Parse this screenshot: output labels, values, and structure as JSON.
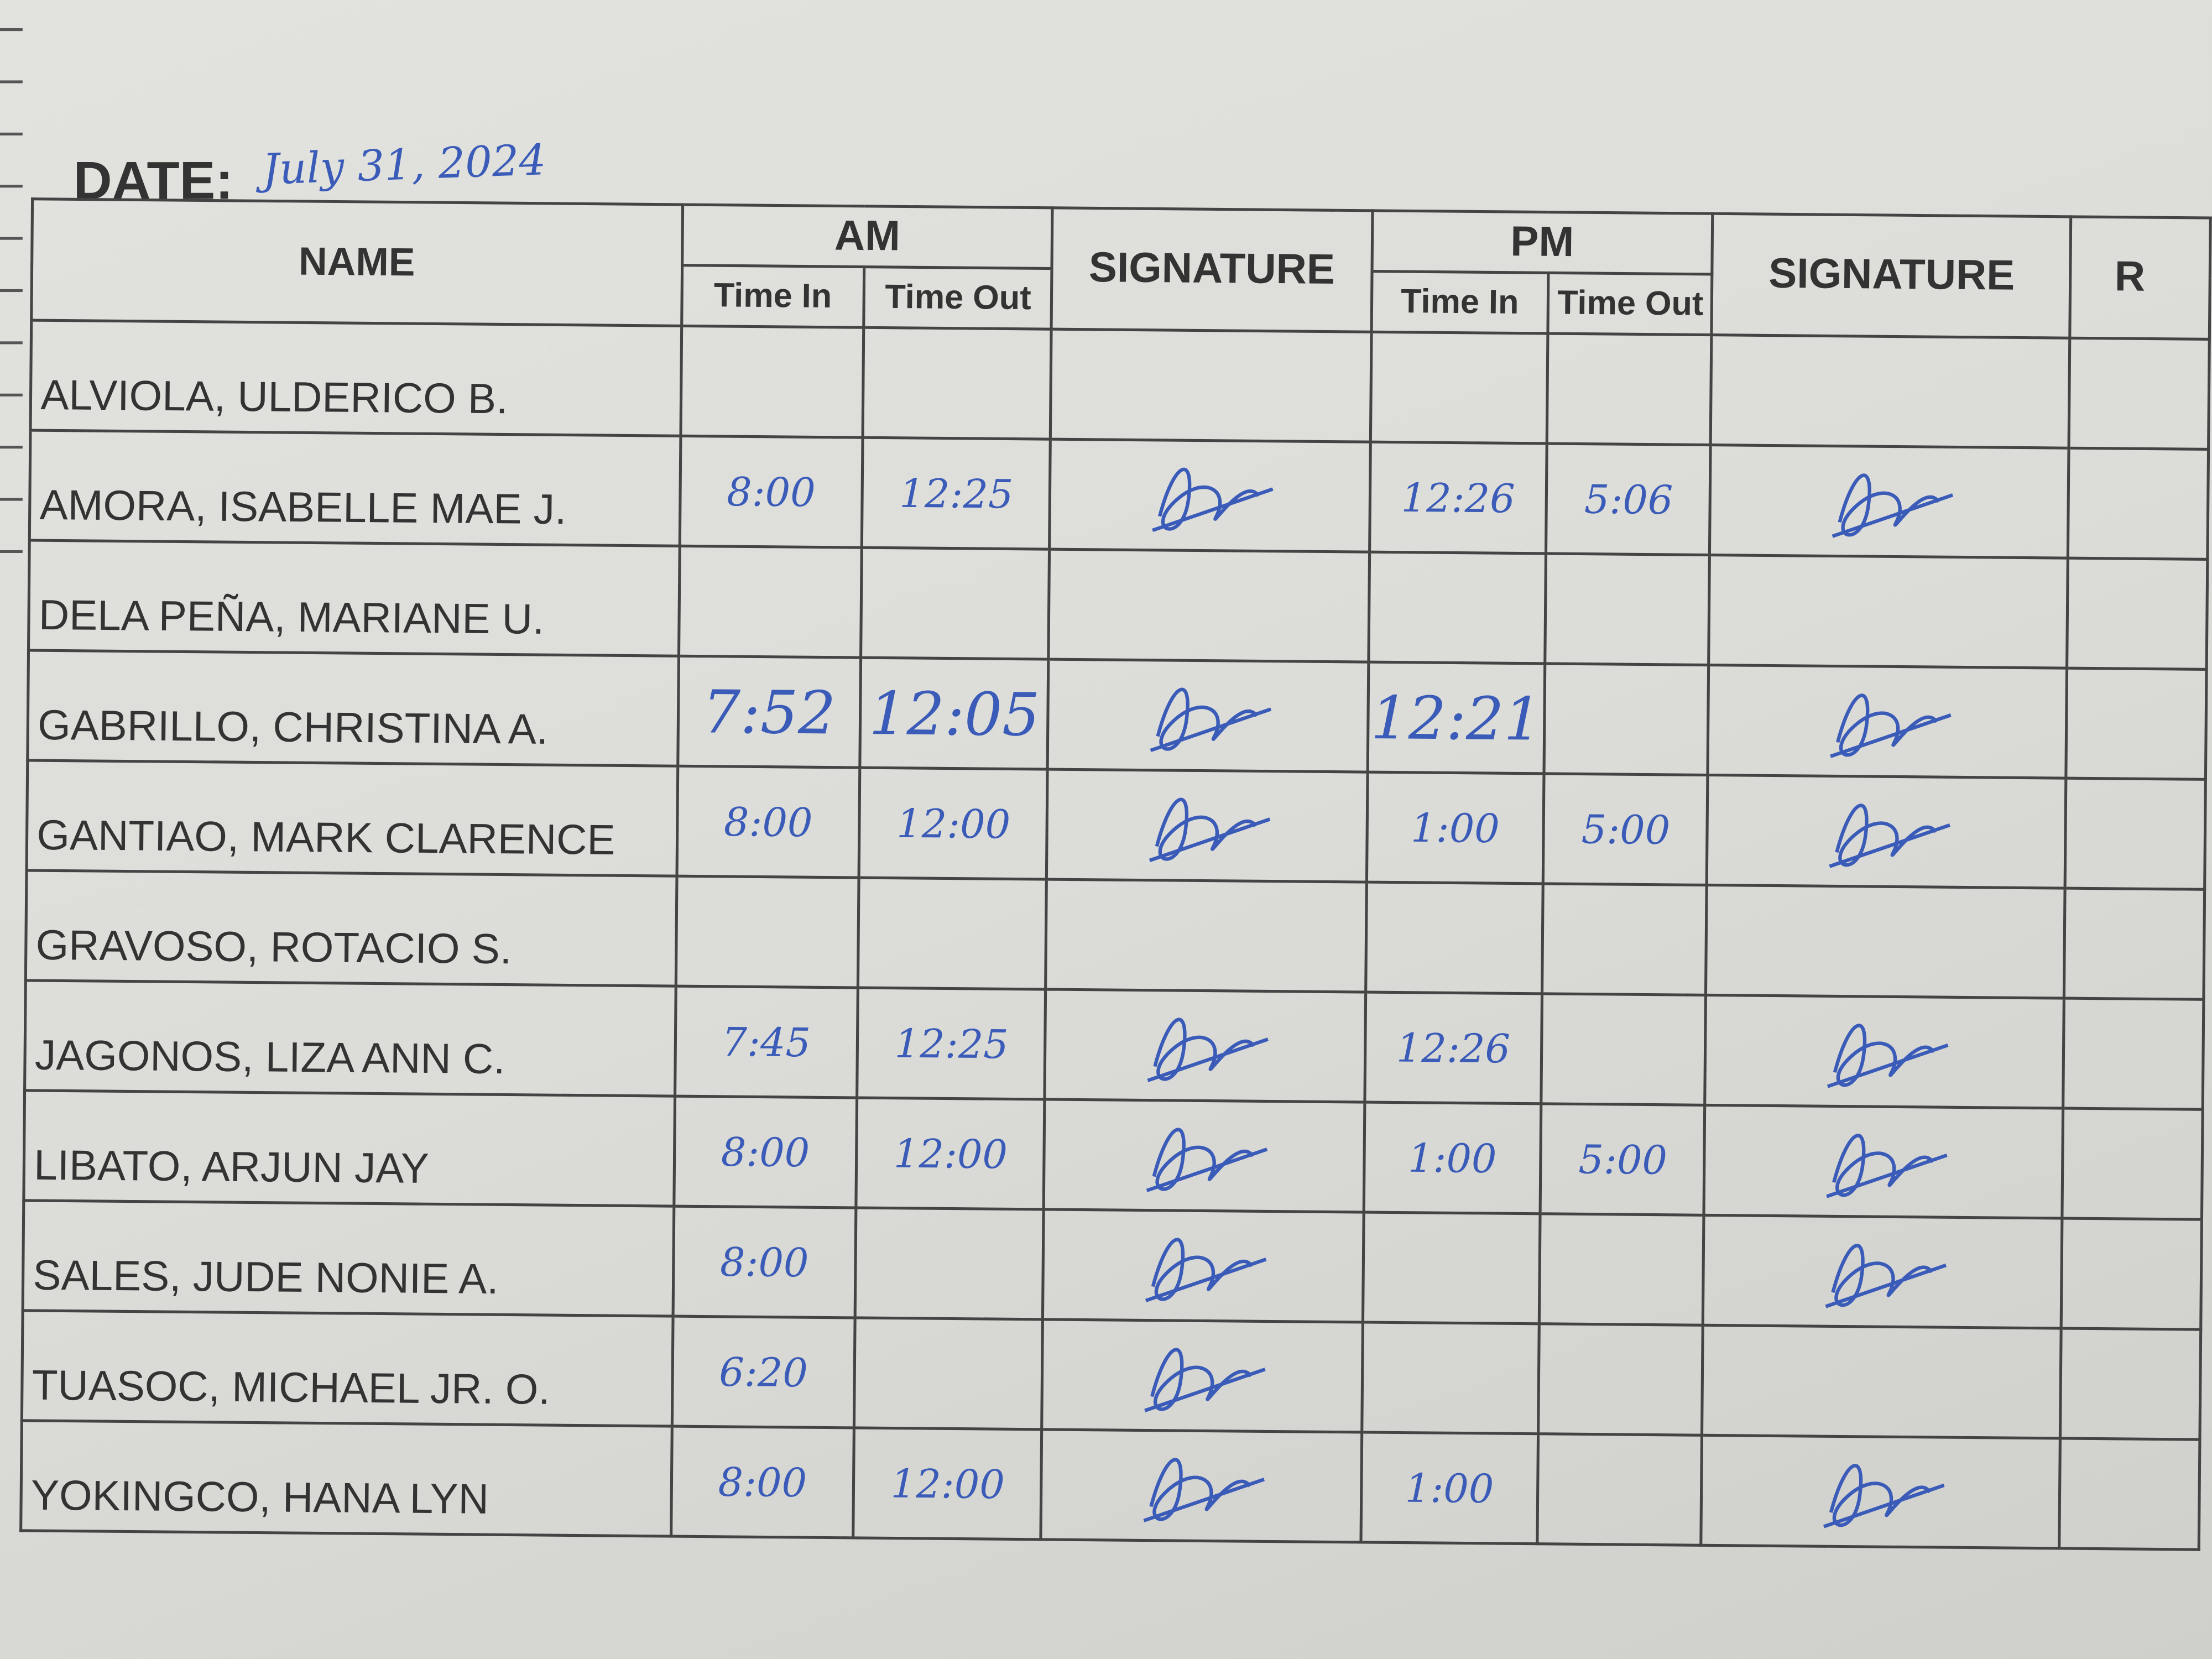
{
  "header": {
    "date_label": "DATE:",
    "date_value": "July 31, 2024"
  },
  "columns": {
    "name": "NAME",
    "am": "AM",
    "pm": "PM",
    "time_in": "Time In",
    "time_out": "Time Out",
    "signature": "SIGNATURE",
    "remarks_partial": "R"
  },
  "ink_color": "#3a5bb8",
  "rows": [
    {
      "name": "ALVIOLA, ULDERICO B.",
      "am_in": "",
      "am_out": "",
      "am_signed": false,
      "pm_in": "",
      "pm_out": "",
      "pm_signed": false
    },
    {
      "name": "AMORA, ISABELLE MAE J.",
      "am_in": "8:00",
      "am_out": "12:25",
      "am_signed": true,
      "pm_in": "12:26",
      "pm_out": "5:06",
      "pm_signed": true
    },
    {
      "name": "DELA PEÑA, MARIANE U.",
      "am_in": "",
      "am_out": "",
      "am_signed": false,
      "pm_in": "",
      "pm_out": "",
      "pm_signed": false
    },
    {
      "name": "GABRILLO, CHRISTINA A.",
      "am_in": "7:52",
      "am_out": "12:05",
      "am_signed": true,
      "pm_in": "12:21",
      "pm_out": "",
      "pm_signed": true
    },
    {
      "name": "GANTIAO, MARK CLARENCE",
      "am_in": "8:00",
      "am_out": "12:00",
      "am_signed": true,
      "pm_in": "1:00",
      "pm_out": "5:00",
      "pm_signed": true
    },
    {
      "name": "GRAVOSO, ROTACIO S.",
      "am_in": "",
      "am_out": "",
      "am_signed": false,
      "pm_in": "",
      "pm_out": "",
      "pm_signed": false
    },
    {
      "name": "JAGONOS, LIZA ANN C.",
      "am_in": "7:45",
      "am_out": "12:25",
      "am_signed": true,
      "pm_in": "12:26",
      "pm_out": "",
      "pm_signed": true
    },
    {
      "name": "LIBATO, ARJUN JAY",
      "am_in": "8:00",
      "am_out": "12:00",
      "am_signed": true,
      "pm_in": "1:00",
      "pm_out": "5:00",
      "pm_signed": true
    },
    {
      "name": "SALES, JUDE NONIE A.",
      "am_in": "8:00",
      "am_out": "",
      "am_signed": true,
      "pm_in": "",
      "pm_out": "",
      "pm_signed": true
    },
    {
      "name": "TUASOC, MICHAEL JR. O.",
      "am_in": "6:20",
      "am_out": "",
      "am_signed": true,
      "pm_in": "",
      "pm_out": "",
      "pm_signed": false
    },
    {
      "name": "YOKINGCO, HANA LYN",
      "am_in": "8:00",
      "am_out": "12:00",
      "am_signed": true,
      "pm_in": "1:00",
      "pm_out": "",
      "pm_signed": true
    }
  ]
}
